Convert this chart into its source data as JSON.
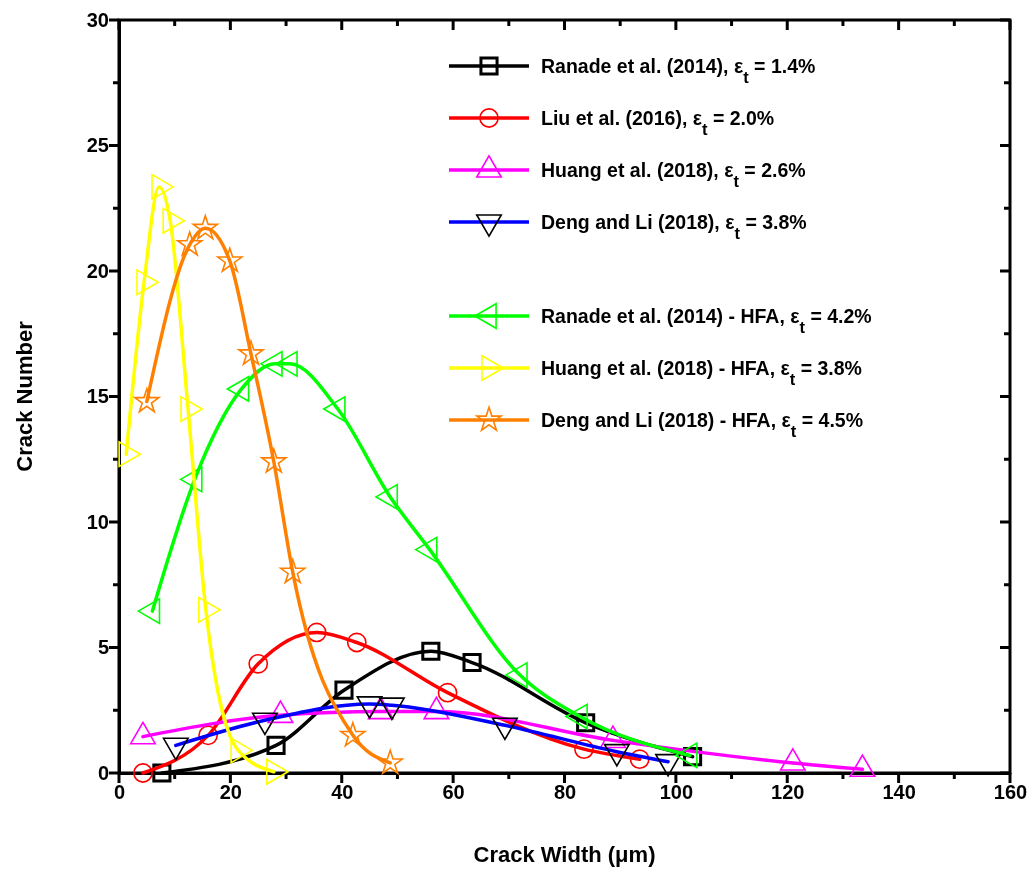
{
  "chart_data": {
    "type": "line",
    "xlabel": "Crack Width (μm)",
    "ylabel": "Crack Number",
    "xlim": [
      0,
      160
    ],
    "ylim": [
      0,
      30
    ],
    "xticks": [
      0,
      {
        "value": 10,
        "label": null
      },
      20,
      {
        "value": 30,
        "label": null
      },
      40,
      {
        "value": 50,
        "label": null
      },
      60,
      {
        "value": 70,
        "label": null
      },
      80,
      {
        "value": 90,
        "label": null
      },
      100,
      {
        "value": 110,
        "label": null
      },
      120,
      {
        "value": 130,
        "label": null
      },
      140,
      {
        "value": 150,
        "label": null
      },
      160
    ],
    "yticks": [
      0,
      {
        "value": 2.5,
        "label": null
      },
      5,
      {
        "value": 7.5,
        "label": null
      },
      10,
      {
        "value": 12.5,
        "label": null
      },
      15,
      {
        "value": 17.5,
        "label": null
      },
      20,
      {
        "value": 22.5,
        "label": null
      },
      25,
      {
        "value": 27.5,
        "label": null
      },
      30
    ],
    "grid": false,
    "legend": "top right",
    "line_style": "solid",
    "series": [
      {
        "name": "Ranade et al. (2014), ε$_{t}$ = 1.4%",
        "color": "#000000",
        "marker": "square",
        "x": [
          7.7,
          28.2,
          40.4,
          56,
          63.4,
          83.8,
          103
        ],
        "values": [
          0,
          1.1,
          3.3,
          4.85,
          4.4,
          2.0,
          0.65
        ]
      },
      {
        "name": "Liu et al. (2016), ε$_{t}$ = 2.0%",
        "color": "#ff0000",
        "marker": "circle",
        "x": [
          4.3,
          16,
          25,
          35.5,
          42.7,
          59,
          83.5,
          93.5
        ],
        "values": [
          0,
          1.5,
          4.35,
          5.6,
          5.2,
          3.2,
          0.95,
          0.55
        ]
      },
      {
        "name": "Huang et al. (2018), ε$_{t}$ = 2.6%",
        "color": "#ff00ff",
        "marker": "triangle",
        "x": [
          4.3,
          29,
          47,
          57,
          88.7,
          121,
          133.5
        ],
        "values": [
          1.45,
          2.3,
          2.45,
          2.45,
          1.3,
          0.4,
          0.15
        ]
      },
      {
        "name": "Deng and Li (2018), ε$_{t}$ = 3.8%",
        "color": "#0000ff",
        "marker": "triangle-down",
        "x": [
          10.2,
          26.2,
          45,
          49,
          69.3,
          89.4,
          98.6
        ],
        "values": [
          1.1,
          2.1,
          2.75,
          2.7,
          1.9,
          0.85,
          0.45
        ]
      },
      {
        "name": "Ranade et al. (2014) - HFA, ε$_{t}$ = 4.2%",
        "color": "#00ff00",
        "marker": "triangle-left",
        "x": [
          6,
          13.6,
          22,
          28,
          30.7,
          39.3,
          48.7,
          55.8,
          72,
          82.8,
          102.5
        ],
        "values": [
          6.45,
          11.7,
          15.3,
          16.3,
          16.3,
          14.5,
          11.0,
          8.9,
          3.9,
          2.25,
          0.7
        ]
      },
      {
        "name": "Huang et al. (2018) - HFA, ε$_{t}$ = 3.8%",
        "color": "#ffff00",
        "marker": "triangle-right",
        "x": [
          1.3,
          4.5,
          7.2,
          9.2,
          12.4,
          15.6,
          21.4,
          27.8
        ],
        "values": [
          12.7,
          19.55,
          23.35,
          22.0,
          14.5,
          6.5,
          0.9,
          0.05
        ]
      },
      {
        "name": "Deng and Li (2018) - HFA, ε$_{t}$ = 4.5%",
        "color": "#ff8000",
        "marker": "star",
        "x": [
          5,
          12.7,
          15.5,
          19.9,
          23.7,
          27.8,
          31.2,
          42,
          48.7
        ],
        "values": [
          14.8,
          21.05,
          21.7,
          20.4,
          16.7,
          12.4,
          8.0,
          1.5,
          0.4
        ]
      }
    ]
  }
}
